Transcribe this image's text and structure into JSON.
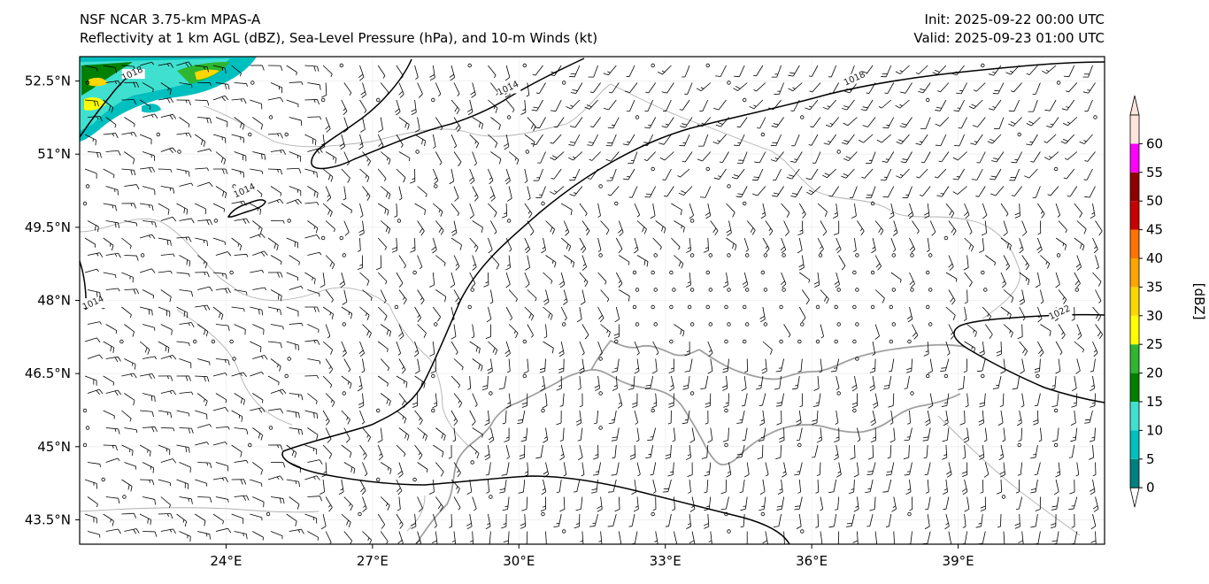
{
  "header": {
    "left_line1": "NSF NCAR 3.75-km MPAS-A",
    "left_line2": "Reflectivity at 1 km AGL (dBZ), Sea-Level Pressure (hPa), and 10-m Winds (kt)",
    "right_line1": "Init: 2025-09-22 00:00 UTC",
    "right_line2": "Valid: 2025-09-23 01:00 UTC"
  },
  "map": {
    "lon_range": [
      21,
      42
    ],
    "lat_range": [
      43,
      53
    ],
    "lat_ticks": [
      "52.5°N",
      "51°N",
      "49.5°N",
      "48°N",
      "46.5°N",
      "45°N",
      "43.5°N"
    ],
    "lon_ticks": [
      "24°E",
      "27°E",
      "30°E",
      "33°E",
      "36°E",
      "39°E"
    ],
    "contours": [
      {
        "value": "1014",
        "label_lon": 21.3,
        "label_lat": 47.9
      },
      {
        "value": "1014",
        "label_lon": 24.4,
        "label_lat": 50.2
      },
      {
        "value": "1014",
        "label_lon": 29.8,
        "label_lat": 52.3
      },
      {
        "value": "1018",
        "label_lon": 22.1,
        "label_lat": 52.6
      },
      {
        "value": "1018",
        "label_lon": 36.9,
        "label_lat": 52.5
      },
      {
        "value": "1022",
        "label_lon": 41.1,
        "label_lat": 47.7
      }
    ]
  },
  "colorbar": {
    "label": "[dBZ]",
    "ticks": [
      "0",
      "5",
      "10",
      "15",
      "20",
      "25",
      "30",
      "35",
      "40",
      "45",
      "50",
      "55",
      "60"
    ],
    "colors": [
      "#008080",
      "#00bfbf",
      "#40e0d0",
      "#008000",
      "#2fb52f",
      "#ffff00",
      "#ffd700",
      "#ffa500",
      "#ff7400",
      "#c80000",
      "#900000",
      "#ff00ff",
      "#fde5dc"
    ]
  }
}
